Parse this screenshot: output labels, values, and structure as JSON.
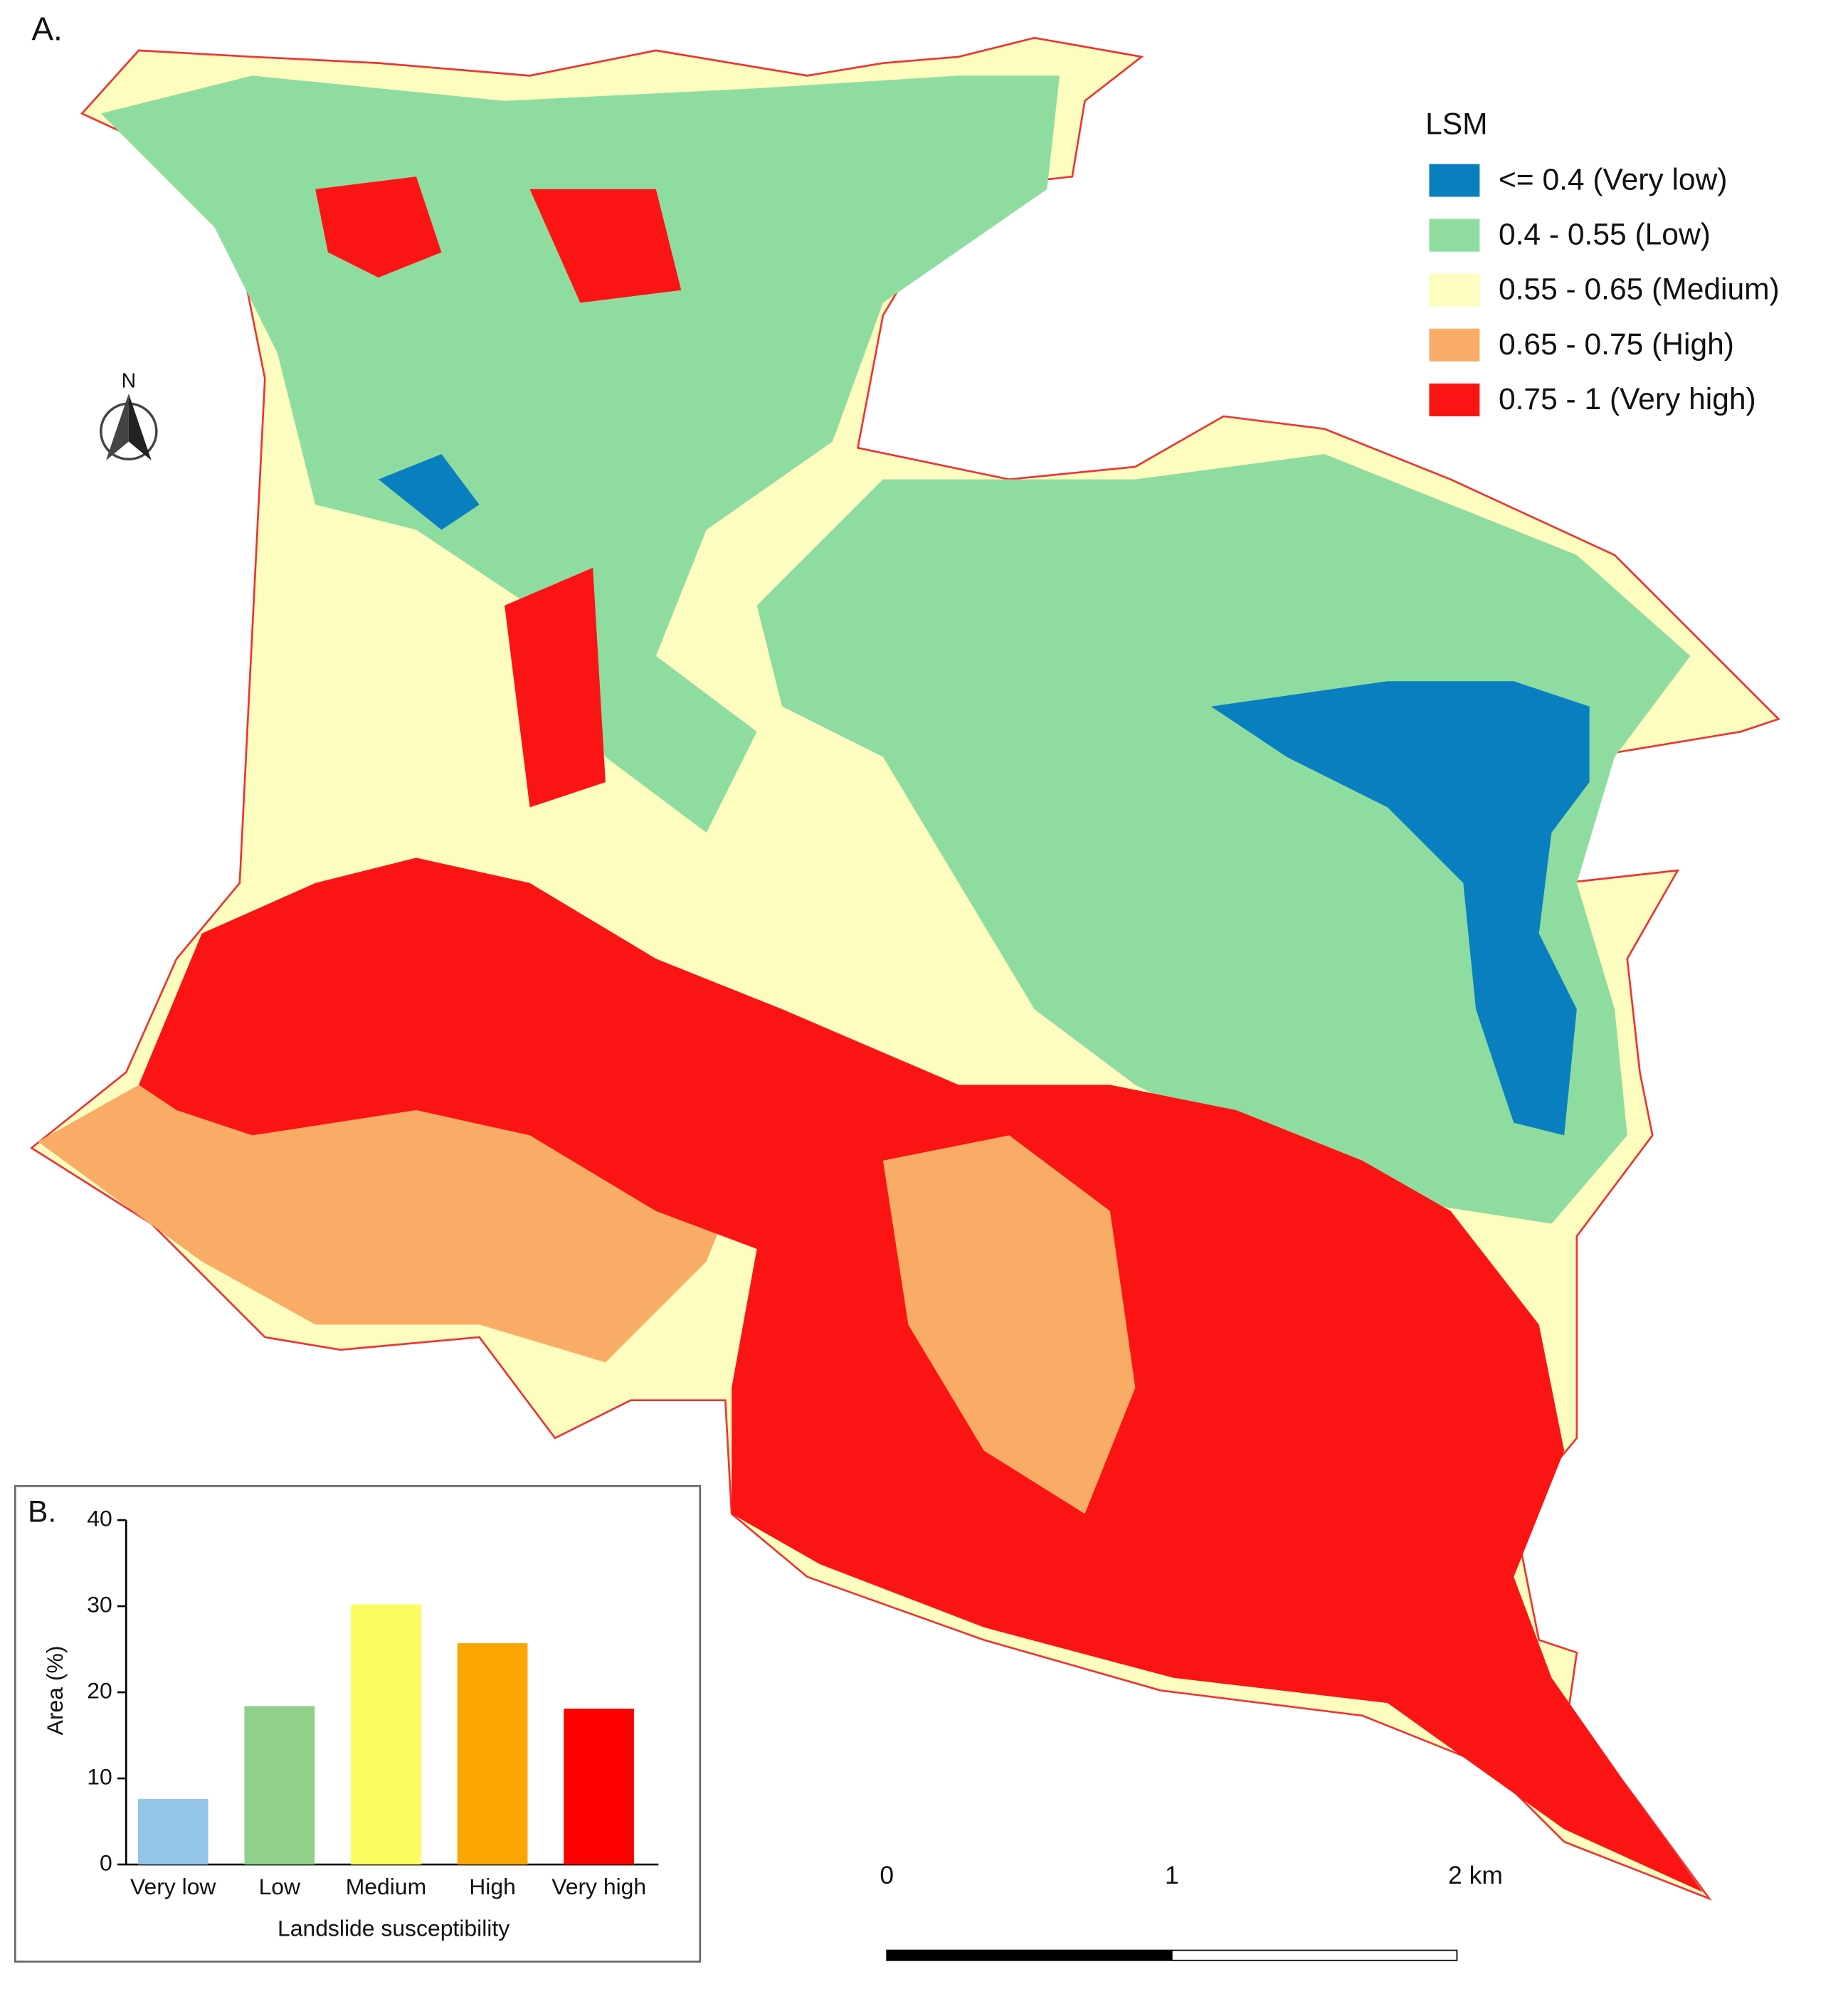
{
  "panel_labels": [
    "A.",
    "B."
  ],
  "north_label": "N",
  "legend": {
    "title": "LSM",
    "items": [
      {
        "label": "<= 0.4 (Very low)",
        "color": "#0a7fc0"
      },
      {
        "label": "0.4 - 0.55 (Low)",
        "color": "#8fdca0"
      },
      {
        "label": "0.55 - 0.65 (Medium)",
        "color": "#fdfdc0"
      },
      {
        "label": "0.65 - 0.75 (High)",
        "color": "#f9ac66"
      },
      {
        "label": "0.75 - 1 (Very high)",
        "color": "#fb1414"
      }
    ]
  },
  "scale_bar": {
    "labels": [
      "0",
      "1",
      "2 km"
    ]
  },
  "chart_data": {
    "type": "bar",
    "xlabel": "Landslide susceptibility",
    "ylabel": "Area (%)",
    "categories": [
      "Very low",
      "Low",
      "Medium",
      "High",
      "Very high"
    ],
    "values": [
      7.6,
      18.4,
      30.2,
      25.7,
      18.1
    ],
    "colors": [
      "#92c5e8",
      "#8fd18a",
      "#fcfc5e",
      "#fba500",
      "#ff0000"
    ],
    "ylim": [
      0,
      40
    ],
    "yticks": [
      0,
      10,
      20,
      30,
      40
    ]
  }
}
